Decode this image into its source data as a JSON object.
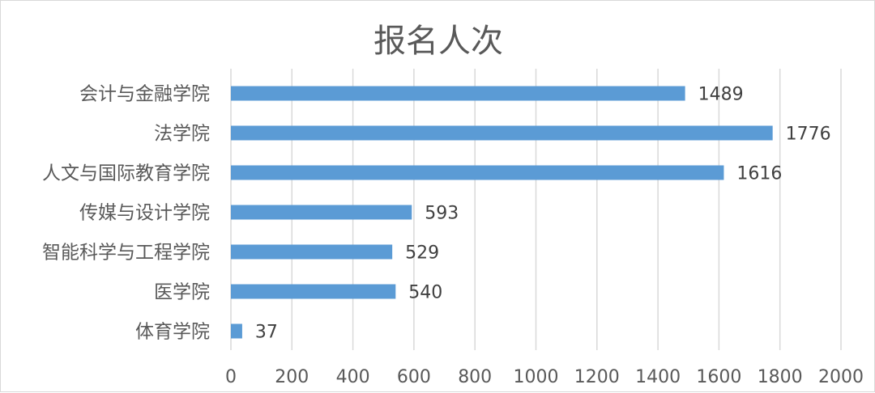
{
  "chart_data": {
    "type": "bar",
    "orientation": "horizontal",
    "title": "报名人次",
    "categories": [
      "会计与金融学院",
      "法学院",
      "人文与国际教育学院",
      "传媒与设计学院",
      "智能科学与工程学院",
      "医学院",
      "体育学院"
    ],
    "series": [
      {
        "values": [
          1489,
          1776,
          1616,
          593,
          529,
          540,
          37
        ],
        "color": "#5b9bd5"
      }
    ],
    "xlim": [
      0,
      2000
    ],
    "xticks": [
      "0",
      "200",
      "400",
      "600",
      "800",
      "1000",
      "1200",
      "1400",
      "1600",
      "1800",
      "2000"
    ],
    "grid": true,
    "data_labels": true
  }
}
